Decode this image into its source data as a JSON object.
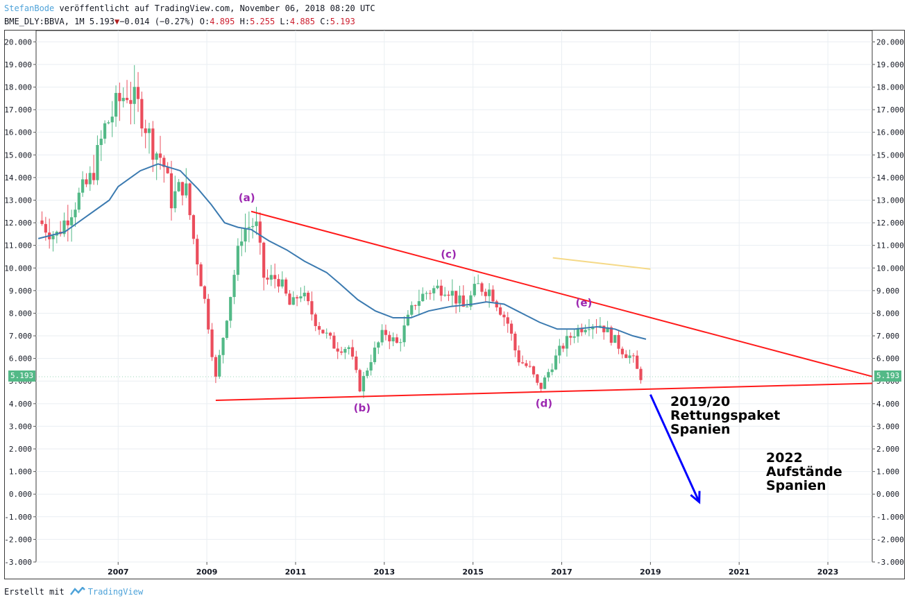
{
  "header": {
    "author": "StefanBode",
    "published": "veröffentlicht auf TradingView.com, November 06, 2018 08:20 UTC",
    "symbol": "BME_DLY:BBVA, 1M",
    "last": "5.193",
    "change": "−0.014 (−0.27%)",
    "open_label": "O:",
    "open": "4.895",
    "high_label": "H:",
    "high": "5.255",
    "low_label": "L:",
    "low": "4.885",
    "close_label": "C:",
    "close": "5.193"
  },
  "footer": {
    "prefix": "Erstellt mit",
    "brand": "TradingView"
  },
  "annotations": {
    "a": "(a)",
    "b": "(b)",
    "c": "(c)",
    "d": "(d)",
    "e": "(e)",
    "note1": [
      "2019/20",
      "Rettungspaket",
      "Spanien"
    ],
    "note2": [
      "2022",
      "Aufstände",
      "Spanien"
    ]
  },
  "price_tag": "5.193",
  "colors": {
    "up": "#53b987",
    "down": "#eb4d5c",
    "ma": "#3b7ab0",
    "trendline": "#ff1a1a",
    "arrow": "#0000ff",
    "label": "#9c27b0",
    "faint_line": "#f5d987"
  },
  "chart_data": {
    "type": "candlestick",
    "title": "",
    "y_axis": {
      "min": -3,
      "max": 20.5,
      "ticks": [
        "20.000",
        "19.000",
        "18.000",
        "17.000",
        "16.000",
        "15.000",
        "14.000",
        "13.000",
        "12.000",
        "11.000",
        "10.000",
        "9.000",
        "8.000",
        "7.000",
        "6.000",
        "5.000",
        "4.000",
        "3.000",
        "2.000",
        "1.000",
        "0.000",
        "-1.000",
        "-2.000",
        "-3.000"
      ],
      "position": "both sides"
    },
    "x_axis": {
      "min": 2005.15,
      "max": 2024.0,
      "ticks": [
        "2007",
        "2009",
        "2011",
        "2013",
        "2015",
        "2017",
        "2019",
        "2021",
        "2023"
      ]
    },
    "grid": true,
    "ohlc_anchors": [
      [
        2005.2,
        12.1
      ],
      [
        2005.6,
        11.4
      ],
      [
        2006.0,
        12.8
      ],
      [
        2006.4,
        14.0
      ],
      [
        2006.7,
        16.2
      ],
      [
        2007.0,
        17.3
      ],
      [
        2007.2,
        17.8
      ],
      [
        2007.5,
        17.0
      ],
      [
        2007.8,
        15.3
      ],
      [
        2008.0,
        14.8
      ],
      [
        2008.2,
        13.0
      ],
      [
        2008.5,
        13.8
      ],
      [
        2008.7,
        11.3
      ],
      [
        2009.0,
        8.0
      ],
      [
        2009.2,
        5.1
      ],
      [
        2009.5,
        8.5
      ],
      [
        2009.8,
        11.7
      ],
      [
        2010.1,
        12.0
      ],
      [
        2010.3,
        9.4
      ],
      [
        2010.6,
        9.6
      ],
      [
        2010.9,
        8.2
      ],
      [
        2011.1,
        9.0
      ],
      [
        2011.5,
        7.5
      ],
      [
        2011.9,
        6.5
      ],
      [
        2012.2,
        6.5
      ],
      [
        2012.45,
        4.7
      ],
      [
        2012.7,
        6.0
      ],
      [
        2013.0,
        7.2
      ],
      [
        2013.3,
        6.6
      ],
      [
        2013.7,
        8.5
      ],
      [
        2014.0,
        9.0
      ],
      [
        2014.4,
        9.2
      ],
      [
        2014.8,
        8.2
      ],
      [
        2015.1,
        9.2
      ],
      [
        2015.4,
        9.0
      ],
      [
        2015.8,
        7.5
      ],
      [
        2016.0,
        6.0
      ],
      [
        2016.3,
        5.5
      ],
      [
        2016.5,
        4.6
      ],
      [
        2016.8,
        5.8
      ],
      [
        2017.0,
        6.5
      ],
      [
        2017.3,
        7.2
      ],
      [
        2017.6,
        7.6
      ],
      [
        2017.9,
        7.5
      ],
      [
        2018.1,
        7.0
      ],
      [
        2018.4,
        6.3
      ],
      [
        2018.6,
        6.0
      ],
      [
        2018.75,
        5.2
      ],
      [
        2018.85,
        5.193
      ]
    ],
    "moving_average": [
      [
        2005.2,
        11.3
      ],
      [
        2005.8,
        11.6
      ],
      [
        2006.3,
        12.3
      ],
      [
        2006.8,
        13.0
      ],
      [
        2007.0,
        13.6
      ],
      [
        2007.5,
        14.3
      ],
      [
        2007.9,
        14.6
      ],
      [
        2008.4,
        14.3
      ],
      [
        2008.8,
        13.5
      ],
      [
        2009.1,
        12.8
      ],
      [
        2009.4,
        12.0
      ],
      [
        2009.7,
        11.8
      ],
      [
        2010.0,
        11.7
      ],
      [
        2010.4,
        11.2
      ],
      [
        2010.8,
        10.8
      ],
      [
        2011.2,
        10.3
      ],
      [
        2011.7,
        9.8
      ],
      [
        2012.0,
        9.3
      ],
      [
        2012.4,
        8.6
      ],
      [
        2012.8,
        8.1
      ],
      [
        2013.2,
        7.8
      ],
      [
        2013.6,
        7.8
      ],
      [
        2014.0,
        8.1
      ],
      [
        2014.5,
        8.3
      ],
      [
        2015.0,
        8.4
      ],
      [
        2015.3,
        8.5
      ],
      [
        2015.7,
        8.4
      ],
      [
        2016.0,
        8.1
      ],
      [
        2016.5,
        7.6
      ],
      [
        2016.9,
        7.3
      ],
      [
        2017.3,
        7.3
      ],
      [
        2017.8,
        7.4
      ],
      [
        2018.2,
        7.3
      ],
      [
        2018.6,
        7.0
      ],
      [
        2018.9,
        6.85
      ]
    ],
    "lines": [
      {
        "from": [
          2010.0,
          12.5
        ],
        "to": [
          2024.0,
          5.2
        ]
      },
      {
        "from": [
          2009.2,
          4.15
        ],
        "to": [
          2024.0,
          4.9
        ]
      }
    ],
    "faint_line": {
      "from": [
        2016.8,
        10.45
      ],
      "to": [
        2019.0,
        9.95
      ]
    },
    "arrow": {
      "from": [
        2019.0,
        4.4
      ],
      "to": [
        2020.1,
        -0.35
      ]
    },
    "labels": [
      {
        "key": "a",
        "at": [
          2009.9,
          12.95
        ]
      },
      {
        "key": "b",
        "at": [
          2012.5,
          3.65
        ]
      },
      {
        "key": "c",
        "at": [
          2014.45,
          10.45
        ]
      },
      {
        "key": "d",
        "at": [
          2016.6,
          3.85
        ]
      },
      {
        "key": "e",
        "at": [
          2017.5,
          8.3
        ]
      }
    ]
  }
}
